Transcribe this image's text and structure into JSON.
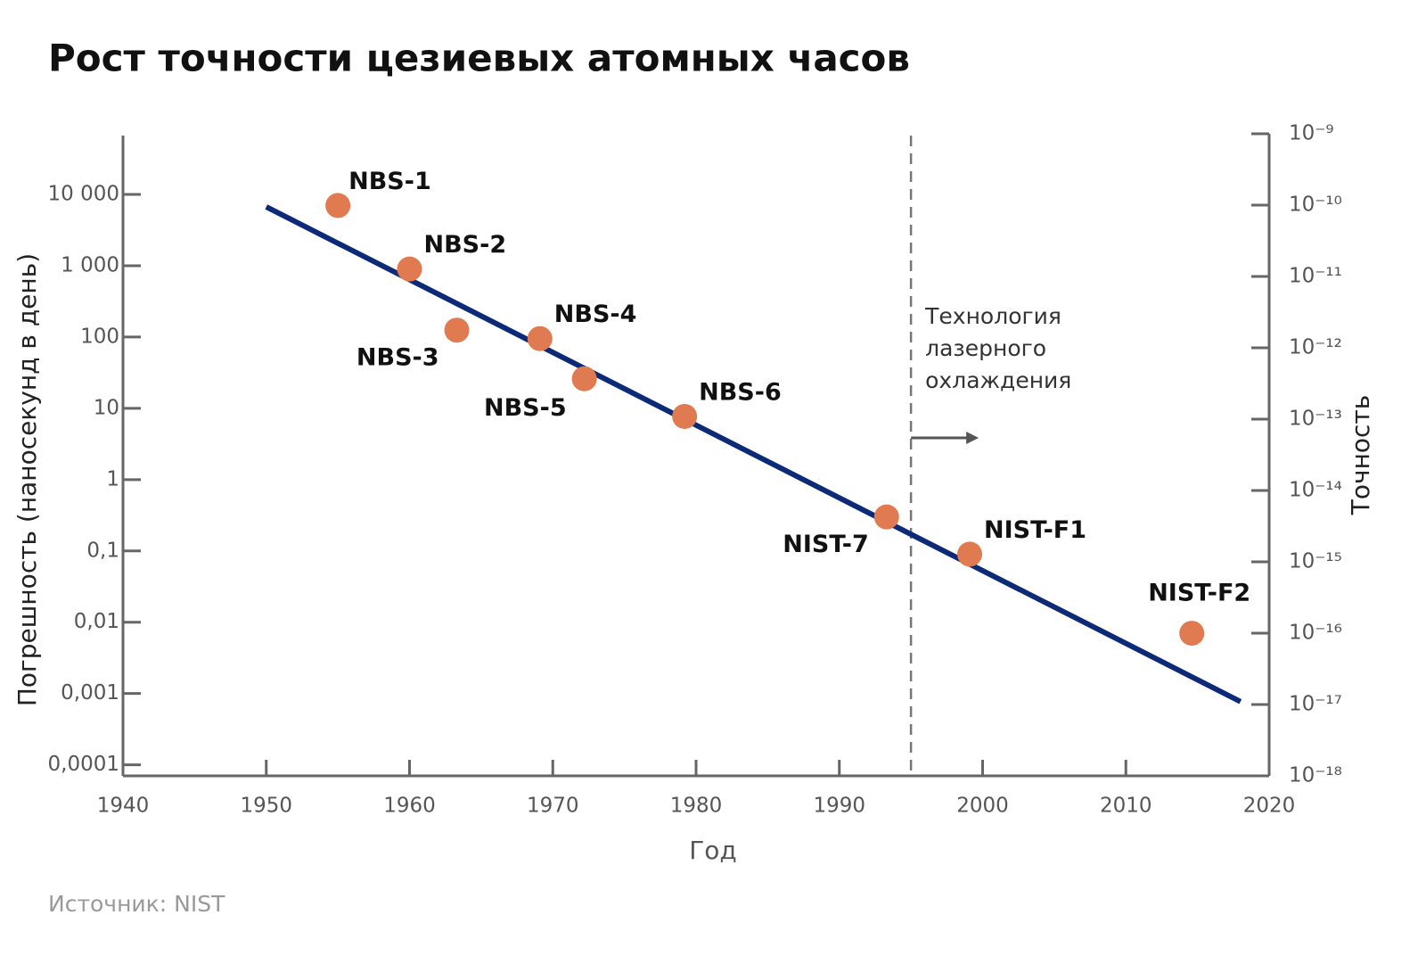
{
  "chart_data": {
    "type": "scatter",
    "title": "Рост точности цезиевых атомных часов",
    "xlabel": "Год",
    "ylabel": "Погрешность (наносекунд в день)",
    "y2label": "Точность",
    "source": "Источник: NIST",
    "log_scale": true,
    "color": "#e07a50",
    "labels": [
      "NBS-1",
      "NBS-2",
      "NBS-3",
      "NBS-4",
      "NBS-5",
      "NBS-6",
      "NIST-7",
      "NIST-F1",
      "NIST-F2"
    ],
    "x": [
      1955,
      1960,
      1963.3,
      1969.1,
      1972.2,
      1979.2,
      1993.3,
      1999.1,
      2014.6
    ],
    "values": [
      7000,
      900,
      125,
      95,
      26,
      7.7,
      0.3,
      0.09,
      0.007
    ],
    "trend": {
      "color": "#0d2a78",
      "x": [
        1950,
        2018
      ],
      "values": [
        6700,
        0.00077
      ]
    },
    "annotation": {
      "x": 1995,
      "lines": [
        "Технология",
        "лазерного",
        "охлаждения"
      ]
    },
    "xlim": [
      1940,
      2020
    ],
    "xticks": [
      1940,
      1950,
      1960,
      1970,
      1980,
      1990,
      2000,
      2010,
      2020
    ],
    "ylim": [
      7e-05,
      67000
    ],
    "yticks": [
      {
        "value": 0.0001,
        "label": "0,0001"
      },
      {
        "value": 0.001,
        "label": "0,001"
      },
      {
        "value": 0.01,
        "label": "0,01"
      },
      {
        "value": 0.1,
        "label": "0,1"
      },
      1,
      10,
      100,
      {
        "value": 1000,
        "label": "1 000"
      },
      {
        "value": 10000,
        "label": "10 000"
      }
    ],
    "y2lim": [
      1e-18,
      1e-09
    ],
    "y2ticks": [
      {
        "value": 1e-09,
        "label": "10⁻⁹"
      },
      {
        "value": 1e-10,
        "label": "10⁻¹⁰"
      },
      {
        "value": 1e-11,
        "label": "10⁻¹¹"
      },
      {
        "value": 1e-12,
        "label": "10⁻¹²"
      },
      {
        "value": 1e-13,
        "label": "10⁻¹³"
      },
      {
        "value": 1e-14,
        "label": "10⁻¹⁴"
      },
      {
        "value": 1e-15,
        "label": "10⁻¹⁵"
      },
      {
        "value": 1e-16,
        "label": "10⁻¹⁶"
      },
      {
        "value": 1e-17,
        "label": "10⁻¹⁷"
      },
      {
        "value": 1e-18,
        "label": "10⁻¹⁸"
      }
    ]
  }
}
